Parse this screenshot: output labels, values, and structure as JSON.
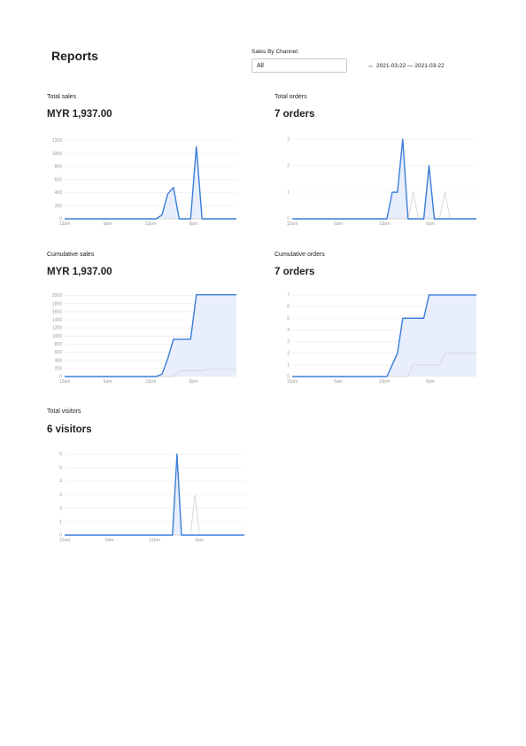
{
  "header": {
    "title": "Reports"
  },
  "filter": {
    "label": "Sales By Channel:",
    "value": "All"
  },
  "date_range": {
    "icon": "calendar-icon",
    "text": "2021-03-22 — 2021-03-22"
  },
  "colors": {
    "primary": "#3b7dd8",
    "fill": "#e8eefb",
    "secondary": "#d6d6d6",
    "grid": "#ececec"
  },
  "cards": [
    {
      "label": "Total sales",
      "value": "MYR 1,937.00"
    },
    {
      "label": "Total orders",
      "value": "7 orders"
    },
    {
      "label": "Cumulative sales",
      "value": "MYR 1,937.00"
    },
    {
      "label": "Cumulative orders",
      "value": "7 orders"
    },
    {
      "label": "Total visitors",
      "value": "6 visitors"
    }
  ],
  "chart_data": [
    {
      "type": "area",
      "x_ticks": [
        "12am",
        "6am",
        "12pm",
        "6pm"
      ],
      "y_ticks": [
        0,
        200,
        400,
        600,
        800,
        1000,
        1200
      ],
      "ylim": [
        0,
        1300
      ],
      "series": [
        {
          "values": [
            0,
            0,
            0,
            0,
            0,
            0,
            0,
            0,
            0,
            0,
            0,
            0,
            0,
            0,
            0,
            0,
            0,
            60,
            380,
            480,
            0,
            0,
            0,
            1100,
            0,
            0,
            0,
            0,
            0,
            0,
            0
          ]
        },
        {
          "values": [
            0,
            0,
            0,
            0,
            0,
            0,
            0,
            0,
            0,
            0,
            0,
            0,
            0,
            0,
            0,
            0,
            0,
            0,
            0,
            0,
            0,
            0,
            0,
            0,
            0,
            0,
            0,
            0,
            0,
            0,
            0
          ]
        }
      ]
    },
    {
      "type": "area",
      "x_ticks": [
        "12am",
        "6am",
        "12pm",
        "6pm"
      ],
      "y_ticks": [
        0,
        1,
        2,
        3
      ],
      "ylim": [
        0,
        3.2
      ],
      "series": [
        {
          "values": [
            0,
            0,
            0,
            0,
            0,
            0,
            0,
            0,
            0,
            0,
            0,
            0,
            0,
            0,
            0,
            0,
            0,
            0,
            0,
            1,
            1,
            3,
            0,
            0,
            0,
            0,
            2,
            0,
            0,
            0,
            0,
            0,
            0,
            0,
            0,
            0
          ]
        },
        {
          "values": [
            0,
            0,
            0,
            0,
            0,
            0,
            0,
            0,
            0,
            0,
            0,
            0,
            0,
            0,
            0,
            0,
            0,
            0,
            0,
            0,
            0,
            0,
            0,
            1,
            0,
            0,
            0,
            0,
            0,
            1,
            0,
            0,
            0,
            0,
            0,
            0
          ]
        }
      ]
    },
    {
      "type": "area",
      "x_ticks": [
        "12am",
        "6am",
        "12pm",
        "6pm"
      ],
      "y_ticks": [
        0,
        200,
        400,
        600,
        800,
        1000,
        1200,
        1400,
        1600,
        1800,
        2000
      ],
      "ylim": [
        0,
        2100
      ],
      "series": [
        {
          "values": [
            0,
            0,
            0,
            0,
            0,
            0,
            0,
            0,
            0,
            0,
            0,
            0,
            0,
            0,
            0,
            0,
            0,
            60,
            440,
            920,
            920,
            920,
            920,
            2020,
            2020,
            2020,
            2020,
            2020,
            2020,
            2020,
            2020
          ]
        },
        {
          "values": [
            0,
            0,
            0,
            0,
            0,
            0,
            0,
            0,
            0,
            0,
            0,
            0,
            0,
            0,
            0,
            0,
            0,
            0,
            0,
            0,
            140,
            140,
            140,
            140,
            140,
            180,
            180,
            180,
            180,
            180,
            180
          ]
        }
      ]
    },
    {
      "type": "area",
      "x_ticks": [
        "12am",
        "6am",
        "12pm",
        "6pm"
      ],
      "y_ticks": [
        0,
        1,
        2,
        3,
        4,
        5,
        6,
        7
      ],
      "ylim": [
        0,
        7.3
      ],
      "series": [
        {
          "values": [
            0,
            0,
            0,
            0,
            0,
            0,
            0,
            0,
            0,
            0,
            0,
            0,
            0,
            0,
            0,
            0,
            0,
            0,
            0,
            1,
            2,
            5,
            5,
            5,
            5,
            5,
            7,
            7,
            7,
            7,
            7,
            7,
            7,
            7,
            7,
            7
          ]
        },
        {
          "values": [
            0,
            0,
            0,
            0,
            0,
            0,
            0,
            0,
            0,
            0,
            0,
            0,
            0,
            0,
            0,
            0,
            0,
            0,
            0,
            0,
            0,
            0,
            0,
            1,
            1,
            1,
            1,
            1,
            1,
            2,
            2,
            2,
            2,
            2,
            2,
            2
          ]
        }
      ]
    },
    {
      "type": "area",
      "x_ticks": [
        "12am",
        "6am",
        "12pm",
        "6pm"
      ],
      "y_ticks": [
        0,
        1,
        2,
        3,
        4,
        5,
        6
      ],
      "ylim": [
        0,
        6.3
      ],
      "series": [
        {
          "values": [
            0,
            0,
            0,
            0,
            0,
            0,
            0,
            0,
            0,
            0,
            0,
            0,
            0,
            0,
            0,
            0,
            0,
            0,
            0,
            0,
            0,
            0,
            0,
            0,
            0,
            6,
            0,
            0,
            0,
            0,
            0,
            0,
            0,
            0,
            0,
            0,
            0,
            0,
            0,
            0,
            0
          ]
        },
        {
          "values": [
            0,
            0,
            0,
            0,
            0,
            0,
            0,
            0,
            0,
            0,
            0,
            0,
            0,
            0,
            0,
            0,
            0,
            0,
            0,
            0,
            0,
            0,
            0,
            0,
            0,
            0,
            0,
            0,
            0,
            3,
            0,
            0,
            0,
            0,
            0,
            0,
            0,
            0,
            0,
            0,
            0
          ]
        }
      ]
    }
  ]
}
